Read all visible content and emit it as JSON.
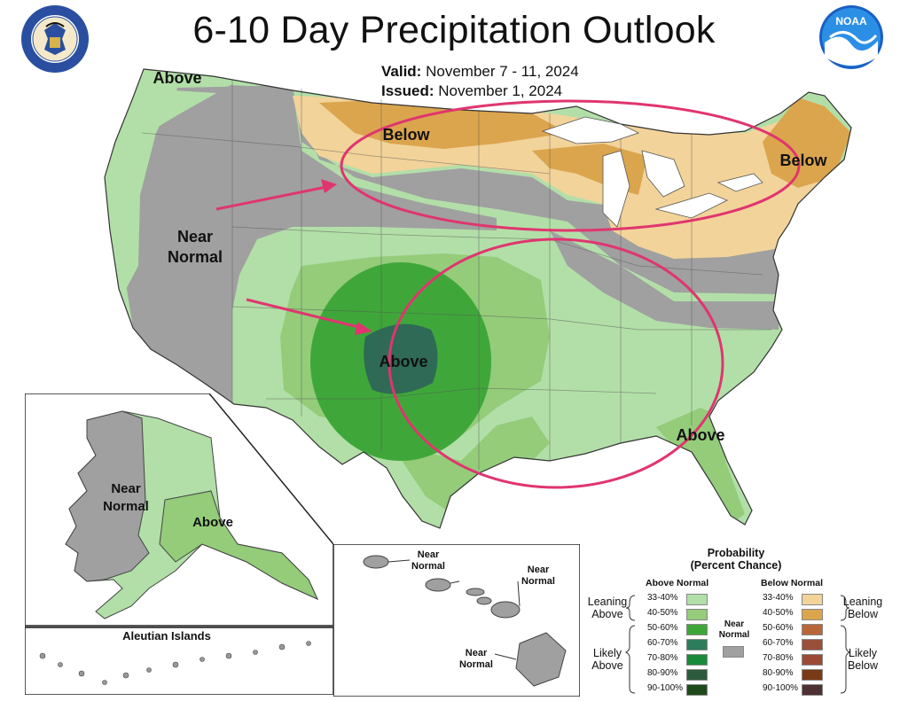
{
  "header": {
    "title": "6-10 Day Precipitation Outlook",
    "valid_label": "Valid:",
    "valid_dates": "November 7 - 11, 2024",
    "issued_label": "Issued:",
    "issued_date": "November 1, 2024"
  },
  "map_labels": {
    "above_northwest": "Above",
    "near_normal_west_1": "Near",
    "near_normal_west_2": "Normal",
    "below_north": "Below",
    "below_northeast": "Below",
    "above_plains": "Above",
    "above_southeast": "Above"
  },
  "alaska": {
    "near_1": "Near",
    "near_2": "Normal",
    "above": "Above",
    "aleutian_title": "Aleutian Islands"
  },
  "hawaii": {
    "label1_a": "Near",
    "label1_b": "Normal",
    "label2_a": "Near",
    "label2_b": "Normal",
    "label3_a": "Near",
    "label3_b": "Normal"
  },
  "legend": {
    "title1": "Probability",
    "title2": "(Percent Chance)",
    "above_header": "Above Normal",
    "below_header": "Below Normal",
    "near_normal_1": "Near",
    "near_normal_2": "Normal",
    "leaning_above_1": "Leaning",
    "leaning_above_2": "Above",
    "likely_above_1": "Likely",
    "likely_above_2": "Above",
    "leaning_below_1": "Leaning",
    "leaning_below_2": "Below",
    "likely_below_1": "Likely",
    "likely_below_2": "Below",
    "above_bins": [
      {
        "label": "33-40%",
        "color": "#b2dfa8"
      },
      {
        "label": "40-50%",
        "color": "#94cc7a"
      },
      {
        "label": "50-60%",
        "color": "#3fa73a"
      },
      {
        "label": "60-70%",
        "color": "#2e7d5c"
      },
      {
        "label": "70-80%",
        "color": "#1a8a3a"
      },
      {
        "label": "80-90%",
        "color": "#2d5a3c"
      },
      {
        "label": "90-100%",
        "color": "#1f4a1c"
      }
    ],
    "below_bins": [
      {
        "label": "33-40%",
        "color": "#f2d39a"
      },
      {
        "label": "40-50%",
        "color": "#dba54e"
      },
      {
        "label": "50-60%",
        "color": "#b8663a"
      },
      {
        "label": "60-70%",
        "color": "#9a4f3a"
      },
      {
        "label": "70-80%",
        "color": "#9c4a36"
      },
      {
        "label": "80-90%",
        "color": "#7a3a16"
      },
      {
        "label": "90-100%",
        "color": "#4d3133"
      }
    ],
    "near_color": "#a0a0a0"
  },
  "colors": {
    "near": "#a0a0a0",
    "above_33": "#b2dfa8",
    "above_40": "#94cc7a",
    "above_50": "#3fa73a",
    "above_60": "#2e6a55",
    "below_33": "#f2d39a",
    "below_40": "#dba54e",
    "annotation": "#e0356f"
  }
}
